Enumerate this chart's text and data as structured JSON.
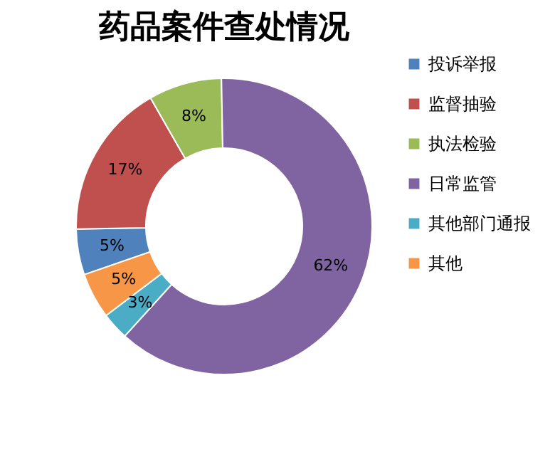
{
  "chart_data": {
    "type": "donut",
    "title": "药品案件查处情况",
    "categories": [
      "投诉举报",
      "监督抽验",
      "执法检验",
      "日常监管",
      "其他部门通报",
      "其他"
    ],
    "values": [
      5,
      17,
      8,
      62,
      3,
      5
    ],
    "value_labels": [
      "5%",
      "17%",
      "8%",
      "62%",
      "3%",
      "5%"
    ],
    "colors": [
      "#4f81bd",
      "#c0504d",
      "#9bbb59",
      "#8064a2",
      "#4bacc6",
      "#f79646"
    ],
    "legend": "right"
  }
}
